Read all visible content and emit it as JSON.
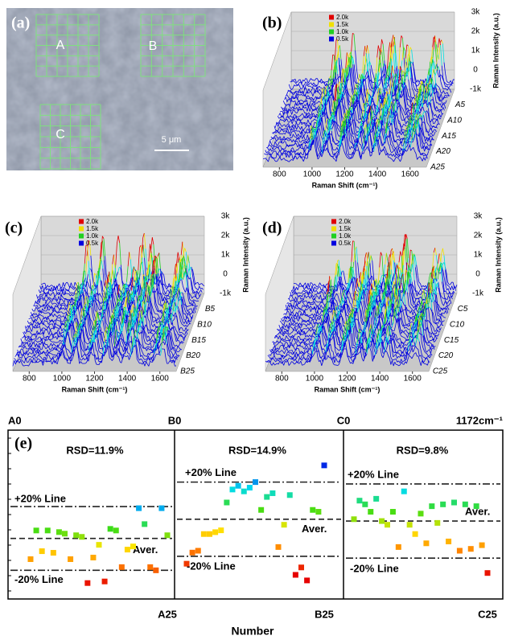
{
  "panel_a": {
    "label": "(a)",
    "regions": [
      "A",
      "B",
      "C"
    ],
    "scale_bar": "5 μm"
  },
  "chart_data": [
    {
      "type": "waterfall3d",
      "label": "(b)",
      "xlabel": "Raman Shift (cm⁻¹)",
      "zlabel": "Raman Intensity (a.u.)",
      "xlim": [
        700,
        1700
      ],
      "xticks": [
        800,
        1000,
        1200,
        1400,
        1600
      ],
      "zlim": [
        -1000,
        3000
      ],
      "zticks": [
        {
          "value": 3000,
          "label": "3k"
        },
        {
          "value": 2000,
          "label": "2k"
        },
        {
          "value": 1000,
          "label": "1k"
        },
        0,
        {
          "value": -1000,
          "label": "-1k"
        }
      ],
      "depth_labels": [
        "A5",
        "A10",
        "A15",
        "A20",
        "A25"
      ],
      "legend": [
        {
          "name": "2.0k",
          "color": "#e00000"
        },
        {
          "name": "1.5k",
          "color": "#f0e000"
        },
        {
          "name": "1.0k",
          "color": "#20d020"
        },
        {
          "name": "0.5k",
          "color": "#0000e0"
        }
      ]
    },
    {
      "type": "waterfall3d",
      "label": "(c)",
      "xlabel": "Raman Shift (cm⁻¹)",
      "zlabel": "Raman Intensity (a.u.)",
      "xlim": [
        700,
        1700
      ],
      "xticks": [
        800,
        1000,
        1200,
        1400,
        1600
      ],
      "zlim": [
        -1000,
        3000
      ],
      "zticks": [
        {
          "value": 3000,
          "label": "3k"
        },
        {
          "value": 2000,
          "label": "2k"
        },
        {
          "value": 1000,
          "label": "1k"
        },
        0,
        {
          "value": -1000,
          "label": "-1k"
        }
      ],
      "depth_labels": [
        "B5",
        "B10",
        "B15",
        "B20",
        "B25"
      ],
      "legend": [
        {
          "name": "2.0k",
          "color": "#e00000"
        },
        {
          "name": "1.5k",
          "color": "#f0e000"
        },
        {
          "name": "1.0k",
          "color": "#20d020"
        },
        {
          "name": "0.5k",
          "color": "#0000e0"
        }
      ]
    },
    {
      "type": "waterfall3d",
      "label": "(d)",
      "xlabel": "Raman Shift (cm⁻¹)",
      "zlabel": "Raman Intensity (a.u.)",
      "xlim": [
        700,
        1700
      ],
      "xticks": [
        800,
        1000,
        1200,
        1400,
        1600
      ],
      "zlim": [
        -1000,
        3000
      ],
      "zticks": [
        {
          "value": 3000,
          "label": "3k"
        },
        {
          "value": 2000,
          "label": "2k"
        },
        {
          "value": 1000,
          "label": "1k"
        },
        0,
        {
          "value": -1000,
          "label": "-1k"
        }
      ],
      "depth_labels": [
        "C5",
        "C10",
        "C15",
        "C20",
        "C25"
      ],
      "legend": [
        {
          "name": "2.0k",
          "color": "#e00000"
        },
        {
          "name": "1.5k",
          "color": "#f0e000"
        },
        {
          "name": "1.0k",
          "color": "#20d020"
        },
        {
          "name": "0.5k",
          "color": "#0000e0"
        }
      ]
    },
    {
      "type": "scatter",
      "label": "(e)",
      "top_labels": [
        "A0",
        "B0",
        "C0",
        "1172cm⁻¹"
      ],
      "bottom_labels": [
        "A25",
        "B25",
        "C25"
      ],
      "xlabel": "Number",
      "series": [
        {
          "rsd": "RSD=11.9%",
          "ylim": [
            62,
            168
          ],
          "values": [
            87,
            105,
            92,
            105,
            91,
            104,
            103,
            87,
            102,
            101,
            72,
            88,
            96,
            73,
            106,
            105,
            82,
            93,
            95,
            119,
            109,
            82,
            80,
            119,
            102
          ],
          "lines": [
            {
              "label": "+20% Line",
              "value": 120
            },
            {
              "label": "Aver.",
              "value": 100
            },
            {
              "label": "-20% Line",
              "value": 80
            }
          ]
        },
        {
          "rsd": "RSD=14.9%",
          "ylim": [
            57,
            148
          ],
          "values": [
            76,
            82,
            83,
            92,
            92,
            93,
            94,
            109,
            116,
            118,
            115,
            117,
            120,
            105,
            112,
            114,
            85,
            97,
            113,
            70,
            74,
            67,
            105,
            104,
            129
          ],
          "lines": [
            {
              "label": "+20% Line",
              "value": 120
            },
            {
              "label": "Aver.",
              "value": 100
            },
            {
              "label": "-20% Line",
              "value": 80
            }
          ]
        },
        {
          "rsd": "RSD=9.8%",
          "ylim": [
            58,
            149
          ],
          "values": [
            101,
            111,
            109,
            105,
            112,
            100,
            98,
            105,
            86,
            116,
            98,
            93,
            104,
            88,
            108,
            99,
            109,
            89,
            110,
            84,
            109,
            85,
            108,
            87,
            72
          ],
          "lines": [
            {
              "label": "+20% Line",
              "value": 120
            },
            {
              "label": "Aver.",
              "value": 100
            },
            {
              "label": "-20% Line",
              "value": 80
            }
          ]
        }
      ]
    }
  ]
}
